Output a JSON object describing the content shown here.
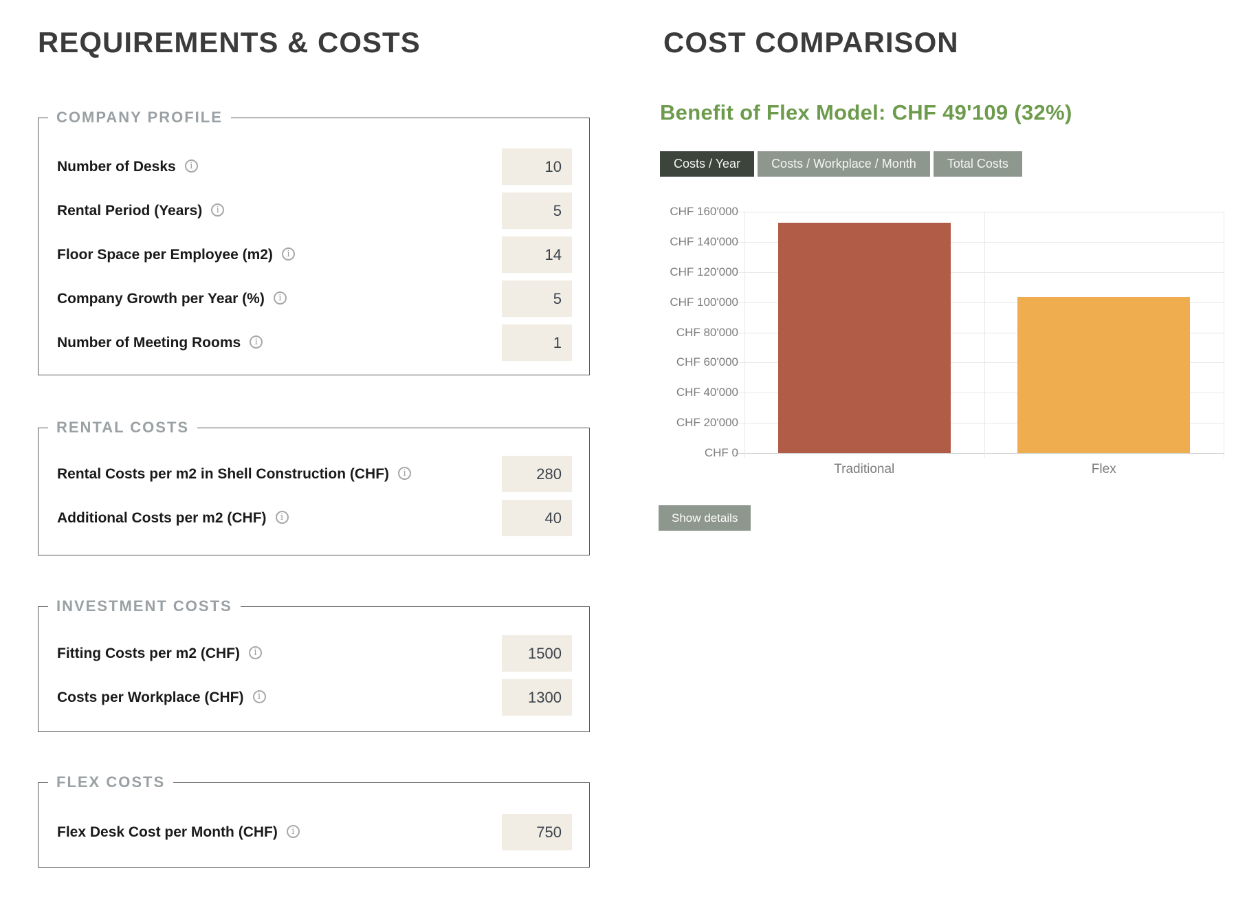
{
  "left_panel": {
    "title": "REQUIREMENTS & COSTS",
    "sections": [
      {
        "legend": "COMPANY PROFILE",
        "fields": [
          {
            "label": "Number of Desks",
            "value": "10"
          },
          {
            "label": "Rental Period (Years)",
            "value": "5"
          },
          {
            "label": "Floor Space per Employee (m2)",
            "value": "14"
          },
          {
            "label": "Company Growth per Year (%)",
            "value": "5"
          },
          {
            "label": "Number of Meeting Rooms",
            "value": "1"
          }
        ]
      },
      {
        "legend": "RENTAL COSTS",
        "fields": [
          {
            "label": "Rental Costs per m2 in Shell Construction (CHF)",
            "value": "280"
          },
          {
            "label": "Additional Costs per m2 (CHF)",
            "value": "40"
          }
        ]
      },
      {
        "legend": "INVESTMENT COSTS",
        "fields": [
          {
            "label": "Fitting Costs per m2 (CHF)",
            "value": "1500"
          },
          {
            "label": "Costs per Workplace (CHF)",
            "value": "1300"
          }
        ]
      },
      {
        "legend": "FLEX COSTS",
        "fields": [
          {
            "label": "Flex Desk Cost per Month (CHF)",
            "value": "750"
          }
        ]
      }
    ],
    "info_icon_glyph": "i"
  },
  "right_panel": {
    "title": "COST COMPARISON",
    "benefit_heading": "Benefit of Flex Model: CHF 49'109 (32%)",
    "tabs": [
      {
        "label": "Costs / Year",
        "active": true
      },
      {
        "label": "Costs / Workplace / Month",
        "active": false
      },
      {
        "label": "Total Costs",
        "active": false
      }
    ],
    "show_details_label": "Show details"
  },
  "chart_data": {
    "type": "bar",
    "title": "",
    "categories": [
      "Traditional",
      "Flex"
    ],
    "values": [
      152600,
      103500
    ],
    "bar_colors": [
      "#b05c47",
      "#efad50"
    ],
    "bar_border_colors": [
      "rgba(176,92,71,0.45)",
      "rgba(239,173,80,0.45)"
    ],
    "ylim": [
      0,
      160000
    ],
    "ytick_step": 20000,
    "ytick_labels_top_to_bottom": [
      "CHF 160'000",
      "CHF 140'000",
      "CHF 120'000",
      "CHF 100'000",
      "CHF 80'000",
      "CHF 60'000",
      "CHF 40'000",
      "CHF 20'000",
      "CHF 0"
    ],
    "xlabel": "",
    "ylabel": "",
    "grid": true,
    "legend_position": "none"
  },
  "colors": {
    "benefit_green": "#6d9b4c",
    "tab_active_bg": "#3c443c",
    "tab_inactive_bg": "#8e978e",
    "input_bg": "#f1ece4",
    "input_text": "#3b434a",
    "label_text": "#1a1a1a",
    "legend_text": "#9aa0a3",
    "fieldset_border": "#555555",
    "title_text": "#3b3b3b",
    "axis_text": "#7c7c7c",
    "gridline": "#e8e8e8"
  }
}
